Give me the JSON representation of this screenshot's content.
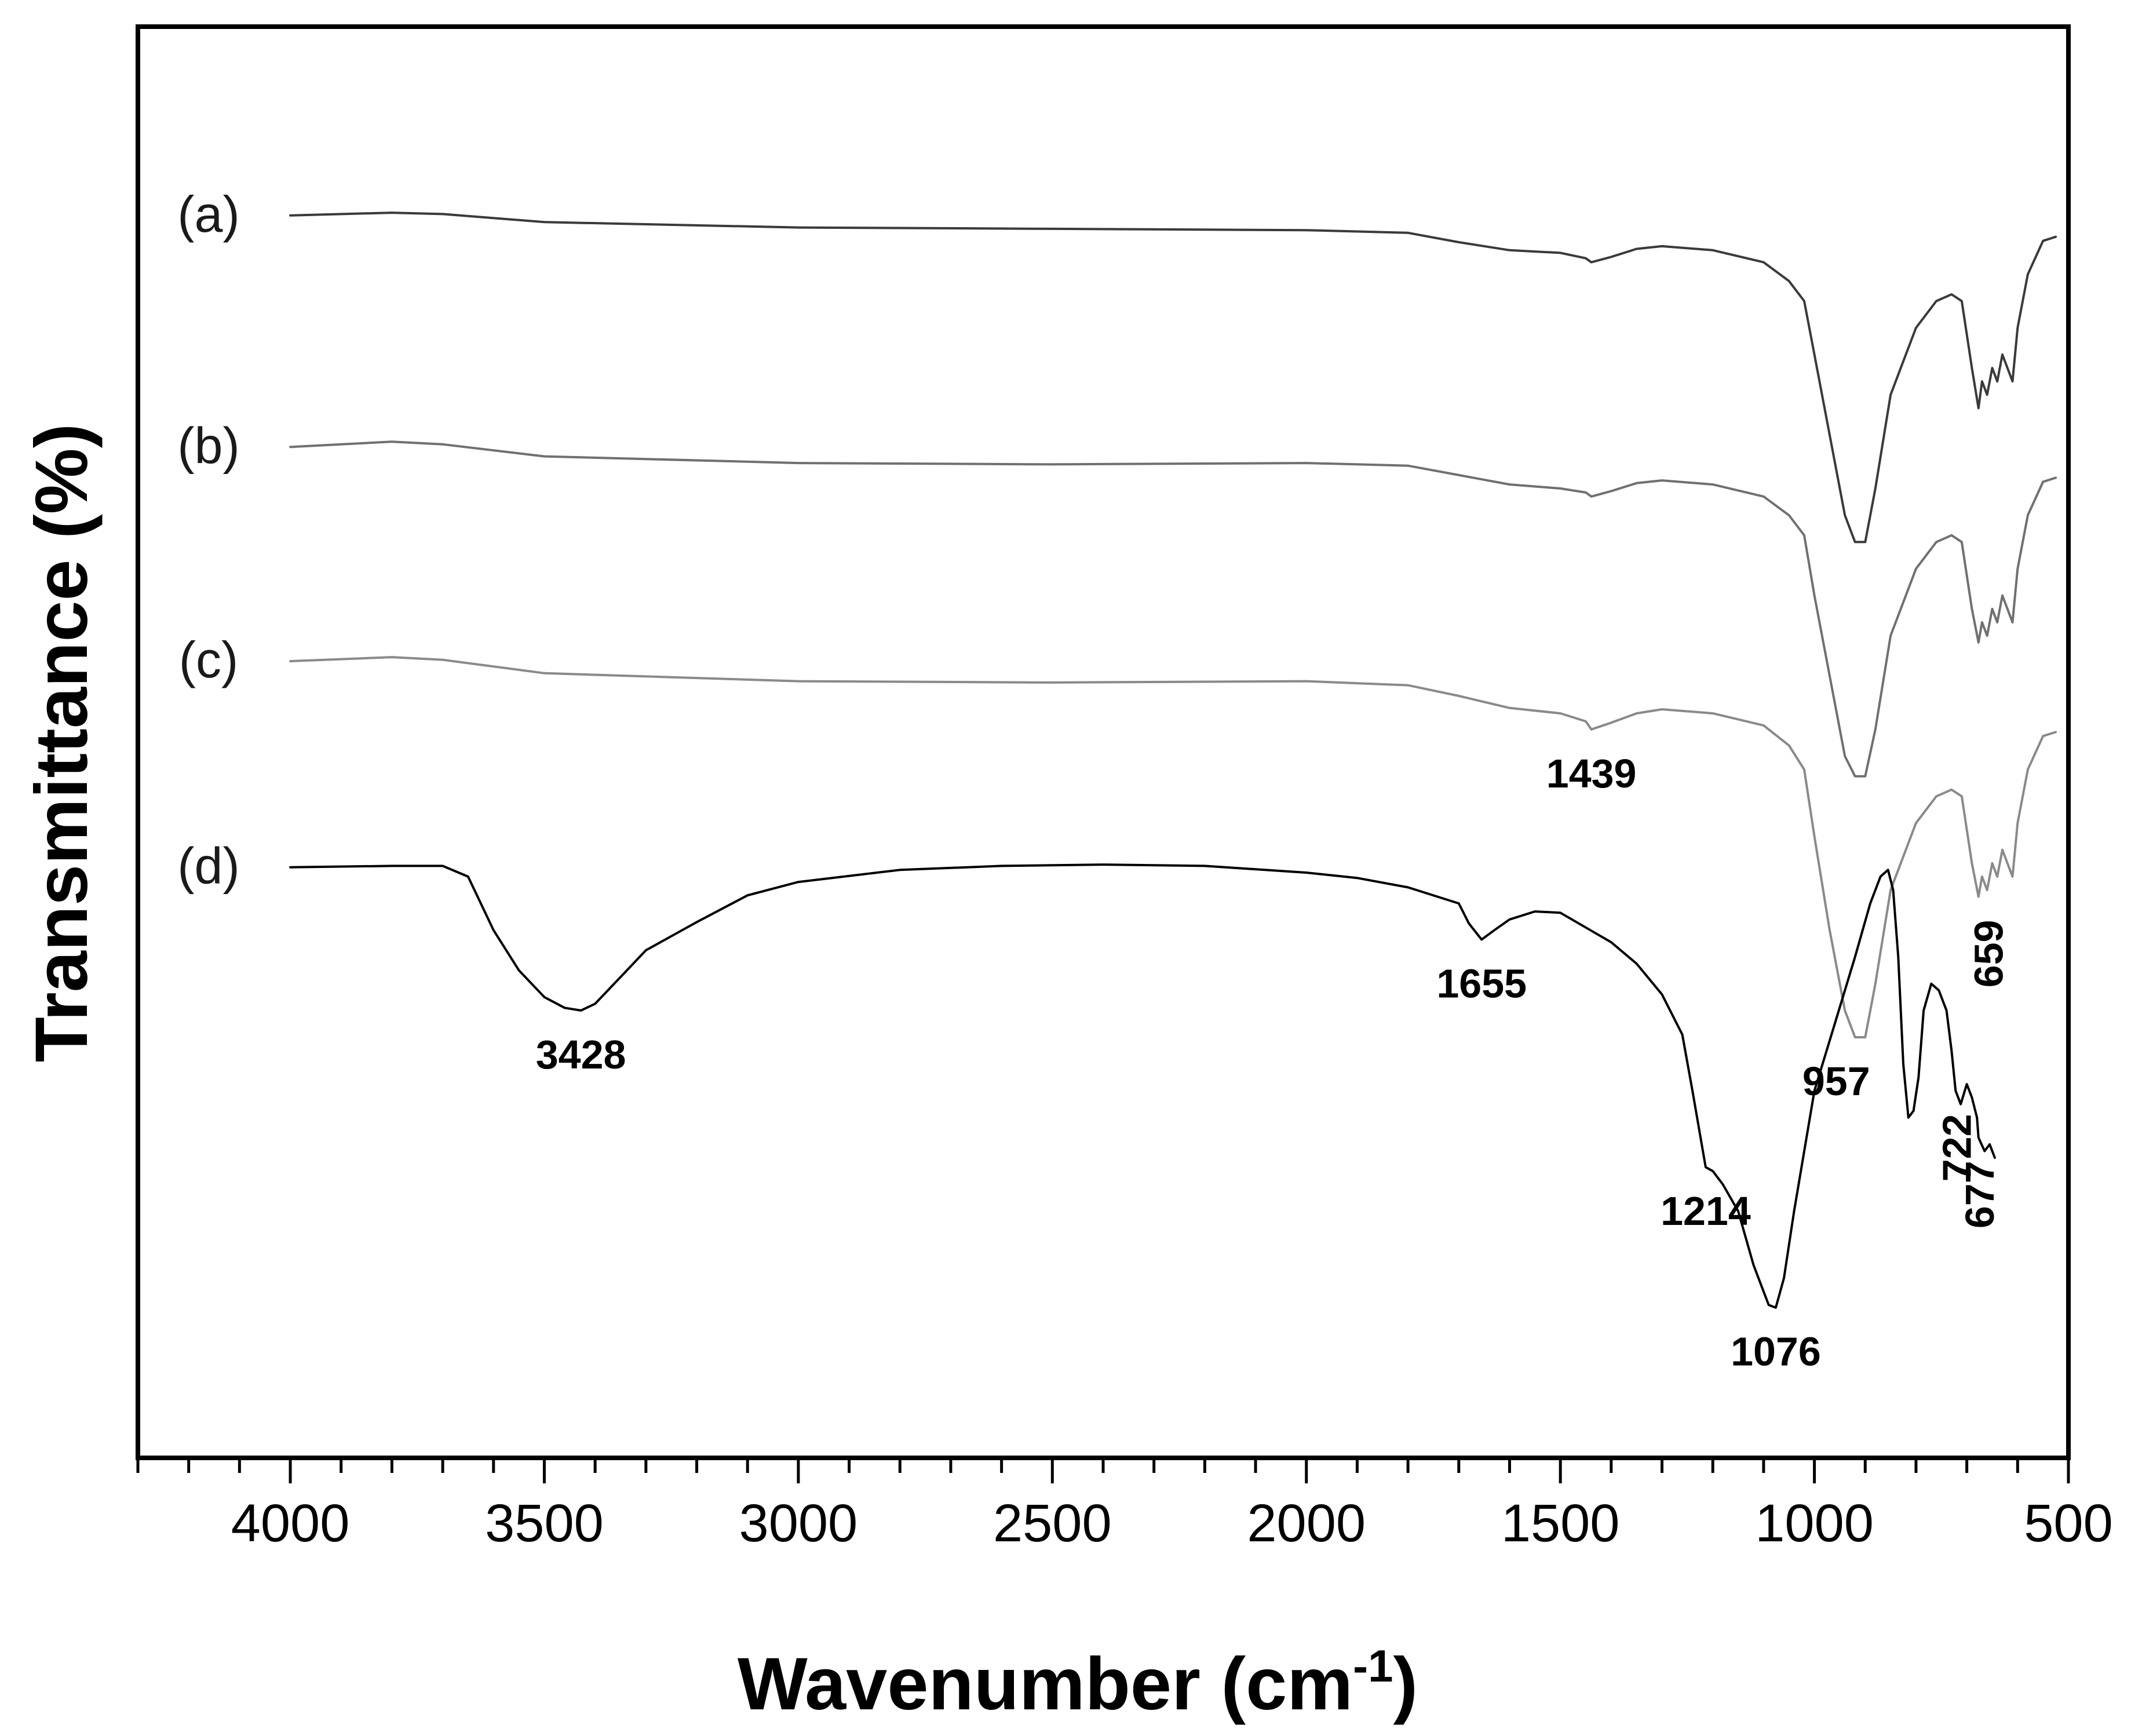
{
  "chart_data": {
    "type": "line",
    "title": "",
    "xlabel": "Wavenumber (cm",
    "xlabel_sup": "-1",
    "xlabel_close": ")",
    "ylabel": "Transmittance (%)",
    "xlim": [
      4300,
      500
    ],
    "x_reversed": true,
    "ylim": [
      0,
      1
    ],
    "y_ticks_shown": false,
    "x_ticks": [
      "4000",
      "3500",
      "3000",
      "2500",
      "2000",
      "1500",
      "1000",
      "500"
    ],
    "grid": false,
    "legend": "none",
    "series": [
      {
        "name": "(a)",
        "color": "#3a3a3a",
        "points": [
          [
            4000,
            0.904
          ],
          [
            3800,
            0.906
          ],
          [
            3700,
            0.905
          ],
          [
            3500,
            0.899
          ],
          [
            3000,
            0.895
          ],
          [
            2500,
            0.894
          ],
          [
            2000,
            0.893
          ],
          [
            1800,
            0.891
          ],
          [
            1700,
            0.884
          ],
          [
            1600,
            0.878
          ],
          [
            1500,
            0.876
          ],
          [
            1450,
            0.872
          ],
          [
            1439,
            0.869
          ],
          [
            1400,
            0.873
          ],
          [
            1350,
            0.879
          ],
          [
            1300,
            0.881
          ],
          [
            1200,
            0.878
          ],
          [
            1100,
            0.869
          ],
          [
            1050,
            0.855
          ],
          [
            1020,
            0.84
          ],
          [
            1000,
            0.8
          ],
          [
            970,
            0.74
          ],
          [
            940,
            0.68
          ],
          [
            920,
            0.66
          ],
          [
            900,
            0.66
          ],
          [
            880,
            0.7
          ],
          [
            850,
            0.77
          ],
          [
            800,
            0.82
          ],
          [
            760,
            0.84
          ],
          [
            730,
            0.845
          ],
          [
            710,
            0.84
          ],
          [
            690,
            0.79
          ],
          [
            677,
            0.76
          ],
          [
            670,
            0.78
          ],
          [
            660,
            0.77
          ],
          [
            650,
            0.79
          ],
          [
            640,
            0.78
          ],
          [
            630,
            0.8
          ],
          [
            620,
            0.79
          ],
          [
            610,
            0.78
          ],
          [
            600,
            0.82
          ],
          [
            580,
            0.86
          ],
          [
            550,
            0.885
          ],
          [
            525,
            0.888
          ]
        ]
      },
      {
        "name": "(b)",
        "color": "#707070",
        "points": [
          [
            4000,
            0.731
          ],
          [
            3800,
            0.735
          ],
          [
            3700,
            0.733
          ],
          [
            3500,
            0.724
          ],
          [
            3000,
            0.719
          ],
          [
            2500,
            0.718
          ],
          [
            2000,
            0.719
          ],
          [
            1800,
            0.717
          ],
          [
            1700,
            0.71
          ],
          [
            1600,
            0.703
          ],
          [
            1500,
            0.7
          ],
          [
            1450,
            0.697
          ],
          [
            1439,
            0.694
          ],
          [
            1400,
            0.698
          ],
          [
            1350,
            0.704
          ],
          [
            1300,
            0.706
          ],
          [
            1200,
            0.703
          ],
          [
            1100,
            0.694
          ],
          [
            1050,
            0.68
          ],
          [
            1020,
            0.665
          ],
          [
            1000,
            0.62
          ],
          [
            970,
            0.56
          ],
          [
            940,
            0.5
          ],
          [
            920,
            0.485
          ],
          [
            900,
            0.485
          ],
          [
            880,
            0.52
          ],
          [
            850,
            0.59
          ],
          [
            800,
            0.64
          ],
          [
            760,
            0.66
          ],
          [
            730,
            0.665
          ],
          [
            710,
            0.66
          ],
          [
            690,
            0.61
          ],
          [
            677,
            0.585
          ],
          [
            670,
            0.6
          ],
          [
            660,
            0.59
          ],
          [
            650,
            0.61
          ],
          [
            640,
            0.6
          ],
          [
            630,
            0.62
          ],
          [
            620,
            0.61
          ],
          [
            610,
            0.6
          ],
          [
            600,
            0.64
          ],
          [
            580,
            0.68
          ],
          [
            550,
            0.705
          ],
          [
            525,
            0.708
          ]
        ]
      },
      {
        "name": "(c)",
        "color": "#8a8a8a",
        "points": [
          [
            4000,
            0.571
          ],
          [
            3800,
            0.574
          ],
          [
            3700,
            0.572
          ],
          [
            3500,
            0.562
          ],
          [
            3000,
            0.556
          ],
          [
            2500,
            0.555
          ],
          [
            2000,
            0.556
          ],
          [
            1800,
            0.553
          ],
          [
            1700,
            0.545
          ],
          [
            1600,
            0.536
          ],
          [
            1500,
            0.532
          ],
          [
            1450,
            0.526
          ],
          [
            1439,
            0.52
          ],
          [
            1400,
            0.525
          ],
          [
            1350,
            0.532
          ],
          [
            1300,
            0.535
          ],
          [
            1200,
            0.532
          ],
          [
            1100,
            0.523
          ],
          [
            1050,
            0.508
          ],
          [
            1020,
            0.49
          ],
          [
            1000,
            0.44
          ],
          [
            970,
            0.37
          ],
          [
            940,
            0.31
          ],
          [
            920,
            0.29
          ],
          [
            900,
            0.29
          ],
          [
            880,
            0.33
          ],
          [
            850,
            0.4
          ],
          [
            800,
            0.45
          ],
          [
            760,
            0.47
          ],
          [
            730,
            0.475
          ],
          [
            710,
            0.47
          ],
          [
            690,
            0.42
          ],
          [
            677,
            0.395
          ],
          [
            670,
            0.41
          ],
          [
            660,
            0.4
          ],
          [
            650,
            0.42
          ],
          [
            640,
            0.41
          ],
          [
            630,
            0.43
          ],
          [
            620,
            0.42
          ],
          [
            610,
            0.41
          ],
          [
            600,
            0.45
          ],
          [
            580,
            0.49
          ],
          [
            550,
            0.515
          ],
          [
            525,
            0.518
          ]
        ]
      },
      {
        "name": "(d)",
        "color": "#000000",
        "points": [
          [
            4000,
            0.417
          ],
          [
            3800,
            0.418
          ],
          [
            3700,
            0.418
          ],
          [
            3650,
            0.41
          ],
          [
            3600,
            0.37
          ],
          [
            3550,
            0.34
          ],
          [
            3500,
            0.32
          ],
          [
            3460,
            0.312
          ],
          [
            3428,
            0.31
          ],
          [
            3400,
            0.315
          ],
          [
            3350,
            0.335
          ],
          [
            3300,
            0.355
          ],
          [
            3200,
            0.376
          ],
          [
            3100,
            0.396
          ],
          [
            3000,
            0.406
          ],
          [
            2800,
            0.415
          ],
          [
            2600,
            0.418
          ],
          [
            2400,
            0.419
          ],
          [
            2200,
            0.418
          ],
          [
            2000,
            0.413
          ],
          [
            1900,
            0.409
          ],
          [
            1800,
            0.402
          ],
          [
            1700,
            0.39
          ],
          [
            1680,
            0.375
          ],
          [
            1655,
            0.363
          ],
          [
            1630,
            0.37
          ],
          [
            1600,
            0.378
          ],
          [
            1550,
            0.384
          ],
          [
            1500,
            0.383
          ],
          [
            1450,
            0.372
          ],
          [
            1400,
            0.361
          ],
          [
            1350,
            0.345
          ],
          [
            1300,
            0.322
          ],
          [
            1260,
            0.292
          ],
          [
            1240,
            0.25
          ],
          [
            1214,
            0.193
          ],
          [
            1200,
            0.19
          ],
          [
            1180,
            0.18
          ],
          [
            1150,
            0.16
          ],
          [
            1120,
            0.12
          ],
          [
            1100,
            0.1
          ],
          [
            1090,
            0.09
          ],
          [
            1076,
            0.088
          ],
          [
            1060,
            0.11
          ],
          [
            1040,
            0.16
          ],
          [
            1000,
            0.25
          ],
          [
            960,
            0.3
          ],
          [
            920,
            0.35
          ],
          [
            890,
            0.39
          ],
          [
            870,
            0.41
          ],
          [
            855,
            0.415
          ],
          [
            845,
            0.4
          ],
          [
            835,
            0.35
          ],
          [
            825,
            0.27
          ],
          [
            815,
            0.23
          ],
          [
            805,
            0.235
          ],
          [
            795,
            0.26
          ],
          [
            785,
            0.31
          ],
          [
            770,
            0.33
          ],
          [
            755,
            0.325
          ],
          [
            740,
            0.31
          ],
          [
            730,
            0.28
          ],
          [
            722,
            0.25
          ],
          [
            712,
            0.24
          ],
          [
            700,
            0.255
          ],
          [
            690,
            0.245
          ],
          [
            680,
            0.23
          ],
          [
            677,
            0.215
          ],
          [
            665,
            0.205
          ],
          [
            655,
            0.21
          ],
          [
            645,
            0.2
          ]
        ]
      }
    ],
    "annotations": [
      {
        "text": "3428",
        "x": 3428,
        "y": 0.31,
        "rotate": 0
      },
      {
        "text": "1655",
        "x": 1655,
        "y": 0.363,
        "rotate": 0
      },
      {
        "text": "1439",
        "x": 1439,
        "y": 0.52,
        "rotate": 0
      },
      {
        "text": "1214",
        "x": 1214,
        "y": 0.193,
        "rotate": 0
      },
      {
        "text": "1076",
        "x": 1076,
        "y": 0.088,
        "rotate": 0
      },
      {
        "text": "957",
        "x": 957,
        "y": 0.29,
        "rotate": 0
      },
      {
        "text": "722",
        "x": 722,
        "y": 0.25,
        "rotate": -90
      },
      {
        "text": "677",
        "x": 677,
        "y": 0.215,
        "rotate": -90
      },
      {
        "text": "659",
        "x": 659,
        "y": 0.395,
        "rotate": -90
      }
    ]
  }
}
